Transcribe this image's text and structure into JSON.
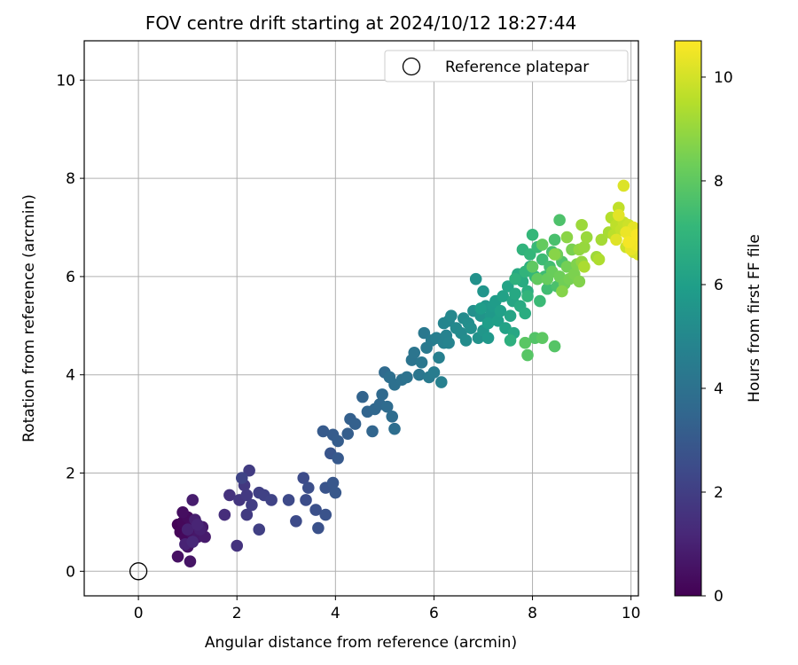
{
  "chart_data": {
    "type": "scatter",
    "title": "FOV centre drift starting at 2024/10/12 18:27:44",
    "xlabel": "Angular distance from reference (arcmin)",
    "ylabel": "Rotation from reference (arcmin)",
    "xlim": [
      -1.1,
      10.15
    ],
    "ylim": [
      -0.5,
      10.8
    ],
    "xticks": [
      0,
      2,
      4,
      6,
      8,
      10
    ],
    "yticks": [
      0,
      2,
      4,
      6,
      8,
      10
    ],
    "grid": true,
    "legend": {
      "placement": "top-right",
      "entries": [
        "Reference platepar"
      ]
    },
    "reference_point": {
      "name": "Reference platepar",
      "x": 0,
      "y": 0,
      "marker": "open-circle"
    },
    "colorbar": {
      "label": "Hours from first FF file",
      "colormap": "viridis",
      "range": [
        0,
        10.7
      ],
      "ticks": [
        0,
        2,
        4,
        6,
        8,
        10
      ]
    },
    "points": [
      [
        0.8,
        0.95,
        0.1
      ],
      [
        0.85,
        0.8,
        0.15
      ],
      [
        0.9,
        1.0,
        0.2
      ],
      [
        0.95,
        0.7,
        0.25
      ],
      [
        1.0,
        1.1,
        0.3
      ],
      [
        1.05,
        0.9,
        0.35
      ],
      [
        0.9,
        1.2,
        0.4
      ],
      [
        1.1,
        0.75,
        0.45
      ],
      [
        0.8,
        0.3,
        0.5
      ],
      [
        1.0,
        0.5,
        0.55
      ],
      [
        1.05,
        0.2,
        0.6
      ],
      [
        1.1,
        0.6,
        0.65
      ],
      [
        1.2,
        0.7,
        0.7
      ],
      [
        1.3,
        0.9,
        0.75
      ],
      [
        1.35,
        0.7,
        0.8
      ],
      [
        1.1,
        1.45,
        0.85
      ],
      [
        1.15,
        1.05,
        0.9
      ],
      [
        1.25,
        0.85,
        0.95
      ],
      [
        1.0,
        0.85,
        1.0
      ],
      [
        0.95,
        0.55,
        1.05
      ],
      [
        1.2,
        0.95,
        1.1
      ],
      [
        1.1,
        0.6,
        1.2
      ],
      [
        1.75,
        1.15,
        1.4
      ],
      [
        1.85,
        1.55,
        1.55
      ],
      [
        2.0,
        0.52,
        1.6
      ],
      [
        2.05,
        1.45,
        1.7
      ],
      [
        2.15,
        1.75,
        1.75
      ],
      [
        2.2,
        1.55,
        1.8
      ],
      [
        2.2,
        1.15,
        1.85
      ],
      [
        2.25,
        2.05,
        1.9
      ],
      [
        2.3,
        1.35,
        1.95
      ],
      [
        2.45,
        1.6,
        2.0
      ],
      [
        2.45,
        0.85,
        2.05
      ],
      [
        2.55,
        1.55,
        2.1
      ],
      [
        2.7,
        1.45,
        2.15
      ],
      [
        2.1,
        1.9,
        2.2
      ],
      [
        3.05,
        1.45,
        2.4
      ],
      [
        3.2,
        1.02,
        2.45
      ],
      [
        3.35,
        1.9,
        2.5
      ],
      [
        3.4,
        1.45,
        2.55
      ],
      [
        3.45,
        1.7,
        2.6
      ],
      [
        3.6,
        1.25,
        2.65
      ],
      [
        3.65,
        0.88,
        2.7
      ],
      [
        3.8,
        1.15,
        2.75
      ],
      [
        3.8,
        1.7,
        2.8
      ],
      [
        3.9,
        2.4,
        2.85
      ],
      [
        3.95,
        1.8,
        2.9
      ],
      [
        4.0,
        1.6,
        2.95
      ],
      [
        4.05,
        2.3,
        3.0
      ],
      [
        3.75,
        2.85,
        3.05
      ],
      [
        3.95,
        2.78,
        3.1
      ],
      [
        4.05,
        2.65,
        3.15
      ],
      [
        4.25,
        2.8,
        3.2
      ],
      [
        4.3,
        3.1,
        3.25
      ],
      [
        4.4,
        3.0,
        3.3
      ],
      [
        4.55,
        3.55,
        3.4
      ],
      [
        4.65,
        3.25,
        3.45
      ],
      [
        4.75,
        2.85,
        3.5
      ],
      [
        4.8,
        3.3,
        3.55
      ],
      [
        4.9,
        3.4,
        3.6
      ],
      [
        4.95,
        3.6,
        3.65
      ],
      [
        5.0,
        4.05,
        3.7
      ],
      [
        5.05,
        3.35,
        3.75
      ],
      [
        5.15,
        3.15,
        3.8
      ],
      [
        5.2,
        2.9,
        3.85
      ],
      [
        5.1,
        3.95,
        3.9
      ],
      [
        5.2,
        3.8,
        3.95
      ],
      [
        5.35,
        3.9,
        4.0
      ],
      [
        5.45,
        3.95,
        4.05
      ],
      [
        5.55,
        4.3,
        4.1
      ],
      [
        5.6,
        4.45,
        4.15
      ],
      [
        5.7,
        4.0,
        4.2
      ],
      [
        5.75,
        4.25,
        4.25
      ],
      [
        5.8,
        4.85,
        4.3
      ],
      [
        5.85,
        4.55,
        4.35
      ],
      [
        5.9,
        3.95,
        4.4
      ],
      [
        5.95,
        4.7,
        4.45
      ],
      [
        6.0,
        4.05,
        4.5
      ],
      [
        6.05,
        4.75,
        4.55
      ],
      [
        6.1,
        4.35,
        4.6
      ],
      [
        6.15,
        3.85,
        4.65
      ],
      [
        6.2,
        4.65,
        4.7
      ],
      [
        6.25,
        4.8,
        4.75
      ],
      [
        6.3,
        4.65,
        4.8
      ],
      [
        6.2,
        5.05,
        4.85
      ],
      [
        6.3,
        5.1,
        4.9
      ],
      [
        6.35,
        5.2,
        5.0
      ],
      [
        6.45,
        4.95,
        5.05
      ],
      [
        6.55,
        4.85,
        5.1
      ],
      [
        6.6,
        5.15,
        5.15
      ],
      [
        6.65,
        4.7,
        5.2
      ],
      [
        6.7,
        5.05,
        5.25
      ],
      [
        6.75,
        4.95,
        5.3
      ],
      [
        6.8,
        5.3,
        5.35
      ],
      [
        6.85,
        5.95,
        5.4
      ],
      [
        6.9,
        4.75,
        5.45
      ],
      [
        6.95,
        5.2,
        5.5
      ],
      [
        7.0,
        5.7,
        5.55
      ],
      [
        7.0,
        4.9,
        5.6
      ],
      [
        7.05,
        5.4,
        5.65
      ],
      [
        7.1,
        4.75,
        5.7
      ],
      [
        7.15,
        5.2,
        5.75
      ],
      [
        7.2,
        5.4,
        5.8
      ],
      [
        7.25,
        5.5,
        5.85
      ],
      [
        6.95,
        5.35,
        5.9
      ],
      [
        7.1,
        5.05,
        5.95
      ],
      [
        7.3,
        5.1,
        6.0
      ],
      [
        7.35,
        5.3,
        6.05
      ],
      [
        7.4,
        5.6,
        6.1
      ],
      [
        7.45,
        4.95,
        6.15
      ],
      [
        7.5,
        5.8,
        6.2
      ],
      [
        7.55,
        5.2,
        6.25
      ],
      [
        7.6,
        5.5,
        6.3
      ],
      [
        7.62,
        4.85,
        6.35
      ],
      [
        7.65,
        5.65,
        6.4
      ],
      [
        7.7,
        6.05,
        6.45
      ],
      [
        7.75,
        5.4,
        6.5
      ],
      [
        7.8,
        5.9,
        6.55
      ],
      [
        7.85,
        5.25,
        6.6
      ],
      [
        7.9,
        5.7,
        6.65
      ],
      [
        7.95,
        6.2,
        6.7
      ],
      [
        7.55,
        4.7,
        6.75
      ],
      [
        7.65,
        5.95,
        6.8
      ],
      [
        7.8,
        6.55,
        6.9
      ],
      [
        7.85,
        6.1,
        6.95
      ],
      [
        7.9,
        5.6,
        7.0
      ],
      [
        7.95,
        6.45,
        7.05
      ],
      [
        8.0,
        6.85,
        7.1
      ],
      [
        8.05,
        6.0,
        7.15
      ],
      [
        8.1,
        6.6,
        7.2
      ],
      [
        8.15,
        5.5,
        7.25
      ],
      [
        8.2,
        6.35,
        7.3
      ],
      [
        8.25,
        6.0,
        7.35
      ],
      [
        8.3,
        5.75,
        7.4
      ],
      [
        8.35,
        6.2,
        7.45
      ],
      [
        8.4,
        6.5,
        7.5
      ],
      [
        8.45,
        6.75,
        7.55
      ],
      [
        8.5,
        5.8,
        7.6
      ],
      [
        8.55,
        7.15,
        7.65
      ],
      [
        8.6,
        6.3,
        7.7
      ],
      [
        8.05,
        4.75,
        7.75
      ],
      [
        8.45,
        4.58,
        7.8
      ],
      [
        7.9,
        4.4,
        7.85
      ],
      [
        7.85,
        4.65,
        7.9
      ],
      [
        8.2,
        4.75,
        7.95
      ],
      [
        8.0,
        6.2,
        8.0
      ],
      [
        8.1,
        5.95,
        8.05
      ],
      [
        8.2,
        6.65,
        8.1
      ],
      [
        8.3,
        5.95,
        8.15
      ],
      [
        8.4,
        6.1,
        8.2
      ],
      [
        8.5,
        6.45,
        8.25
      ],
      [
        8.55,
        6.0,
        8.3
      ],
      [
        8.65,
        5.85,
        8.35
      ],
      [
        8.7,
        6.2,
        8.4
      ],
      [
        8.75,
        5.95,
        8.45
      ],
      [
        8.8,
        6.55,
        8.5
      ],
      [
        8.85,
        6.05,
        8.55
      ],
      [
        8.9,
        6.25,
        8.6
      ],
      [
        8.95,
        5.9,
        8.65
      ],
      [
        8.6,
        5.7,
        8.7
      ],
      [
        8.45,
        6.45,
        8.75
      ],
      [
        8.7,
        6.8,
        8.8
      ],
      [
        8.95,
        6.55,
        8.9
      ],
      [
        9.0,
        6.3,
        8.95
      ],
      [
        9.05,
        6.6,
        9.0
      ],
      [
        9.1,
        6.8,
        9.05
      ],
      [
        9.0,
        7.05,
        9.1
      ],
      [
        9.3,
        6.4,
        9.15
      ],
      [
        9.4,
        6.75,
        9.25
      ],
      [
        9.55,
        6.9,
        9.3
      ],
      [
        9.05,
        6.2,
        9.35
      ],
      [
        9.35,
        6.35,
        9.4
      ],
      [
        9.6,
        7.2,
        9.5
      ],
      [
        9.65,
        6.85,
        9.6
      ],
      [
        9.7,
        7.05,
        9.65
      ],
      [
        9.75,
        7.4,
        9.7
      ],
      [
        9.8,
        6.95,
        9.75
      ],
      [
        9.85,
        7.1,
        9.8
      ],
      [
        9.9,
        6.6,
        9.85
      ],
      [
        9.95,
        7.05,
        9.9
      ],
      [
        10.0,
        6.8,
        9.95
      ],
      [
        10.05,
        6.5,
        10.0
      ],
      [
        10.1,
        6.75,
        10.05
      ],
      [
        10.15,
        6.45,
        10.1
      ],
      [
        9.85,
        7.85,
        10.15
      ],
      [
        9.7,
        6.75,
        10.2
      ],
      [
        9.75,
        7.25,
        10.25
      ],
      [
        10.05,
        7.0,
        10.3
      ],
      [
        10.0,
        6.55,
        10.35
      ],
      [
        9.9,
        6.9,
        10.4
      ],
      [
        10.1,
        6.65,
        10.5
      ],
      [
        9.95,
        6.7,
        10.55
      ],
      [
        10.12,
        6.85,
        10.6
      ]
    ]
  }
}
